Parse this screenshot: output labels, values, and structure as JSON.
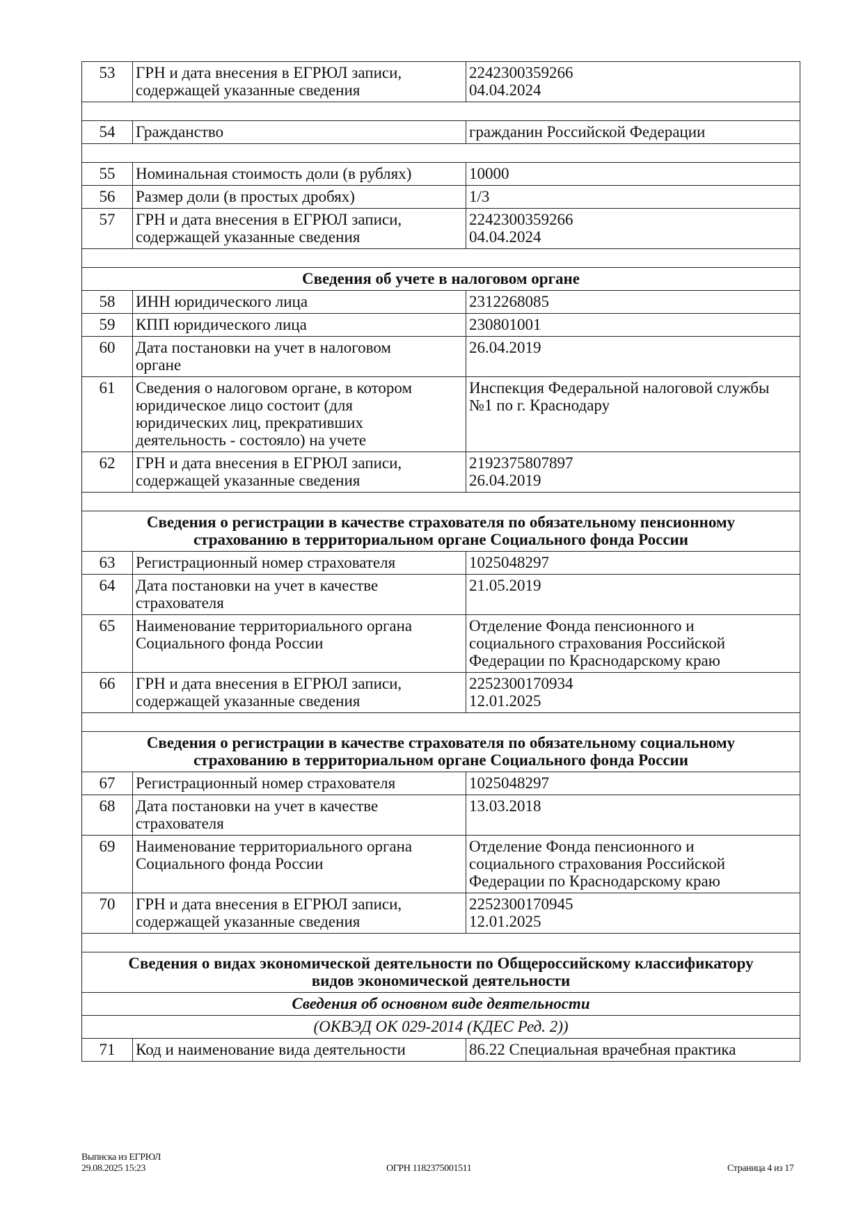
{
  "rows": [
    {
      "type": "row",
      "num": "53",
      "label": "ГРН и дата внесения в ЕГРЮЛ записи,\nсодержащей указанные сведения",
      "value": "2242300359266\n04.04.2024"
    },
    {
      "type": "blank"
    },
    {
      "type": "row",
      "num": "54",
      "label": "Гражданство",
      "value": "гражданин Российской Федерации"
    },
    {
      "type": "blank"
    },
    {
      "type": "row",
      "num": "55",
      "label": "Номинальная стоимость доли (в рублях)",
      "value": "10000"
    },
    {
      "type": "row",
      "num": "56",
      "label": "Размер доли (в простых дробях)",
      "value": "1/3"
    },
    {
      "type": "row",
      "num": "57",
      "label": "ГРН и дата внесения в ЕГРЮЛ записи,\nсодержащей указанные сведения",
      "value": "2242300359266\n04.04.2024"
    },
    {
      "type": "blank"
    },
    {
      "type": "head",
      "text": "Сведения об учете в налоговом органе"
    },
    {
      "type": "row",
      "num": "58",
      "label": "ИНН юридического лица",
      "value": "2312268085"
    },
    {
      "type": "row",
      "num": "59",
      "label": "КПП юридического лица",
      "value": "230801001"
    },
    {
      "type": "row",
      "num": "60",
      "label": "Дата постановки на учет в налоговом\nоргане",
      "value": "26.04.2019"
    },
    {
      "type": "row",
      "num": "61",
      "label": "Сведения о налоговом органе, в котором\nюридическое лицо состоит (для\nюридических лиц, прекративших\nдеятельность - состояло) на учете",
      "value": "Инспекция Федеральной налоговой службы\n№1 по г. Краснодару"
    },
    {
      "type": "row",
      "num": "62",
      "label": "ГРН и дата внесения в ЕГРЮЛ записи,\nсодержащей указанные сведения",
      "value": "2192375807897\n26.04.2019"
    },
    {
      "type": "blank"
    },
    {
      "type": "head",
      "text": "Сведения о регистрации в качестве страхователя по обязательному пенсионному\nстрахованию в территориальном органе Социального фонда России"
    },
    {
      "type": "row",
      "num": "63",
      "label": "Регистрационный номер страхователя",
      "value": "1025048297"
    },
    {
      "type": "row",
      "num": "64",
      "label": "Дата постановки на учет в качестве\nстрахователя",
      "value": "21.05.2019"
    },
    {
      "type": "row",
      "num": "65",
      "label": "Наименование территориального органа\nСоциального фонда России",
      "value": "Отделение Фонда пенсионного и\nсоциального страхования Российской\nФедерации по Краснодарскому краю"
    },
    {
      "type": "row",
      "num": "66",
      "label": "ГРН и дата внесения в ЕГРЮЛ записи,\nсодержащей указанные сведения",
      "value": "2252300170934\n12.01.2025"
    },
    {
      "type": "blank"
    },
    {
      "type": "head",
      "text": "Сведения о регистрации в качестве страхователя по обязательному социальному\nстрахованию в территориальном органе Социального фонда России"
    },
    {
      "type": "row",
      "num": "67",
      "label": "Регистрационный номер страхователя",
      "value": "1025048297"
    },
    {
      "type": "row",
      "num": "68",
      "label": "Дата постановки на учет в качестве\nстрахователя",
      "value": "13.03.2018"
    },
    {
      "type": "row",
      "num": "69",
      "label": "Наименование территориального органа\nСоциального фонда России",
      "value": "Отделение Фонда пенсионного и\nсоциального страхования Российской\nФедерации по Краснодарскому краю"
    },
    {
      "type": "row",
      "num": "70",
      "label": "ГРН и дата внесения в ЕГРЮЛ записи,\nсодержащей указанные сведения",
      "value": "2252300170945\n12.01.2025"
    },
    {
      "type": "blank"
    },
    {
      "type": "head",
      "text": "Сведения о видах экономической деятельности по Общероссийскому классификатору\nвидов экономической деятельности"
    },
    {
      "type": "sub",
      "text": "Сведения об основном виде деятельности"
    },
    {
      "type": "subi",
      "text": "(ОКВЭД ОК 029-2014 (КДЕС Ред. 2))"
    },
    {
      "type": "row",
      "num": "71",
      "label": "Код и наименование вида деятельности",
      "value": "86.22 Специальная врачебная практика"
    }
  ],
  "footer": {
    "doc_title": "Выписка из ЕГРЮЛ",
    "datetime": "29.08.2025 15:23",
    "ogrn": "ОГРН 1182375001511",
    "page": "Страница 4 из 17"
  }
}
